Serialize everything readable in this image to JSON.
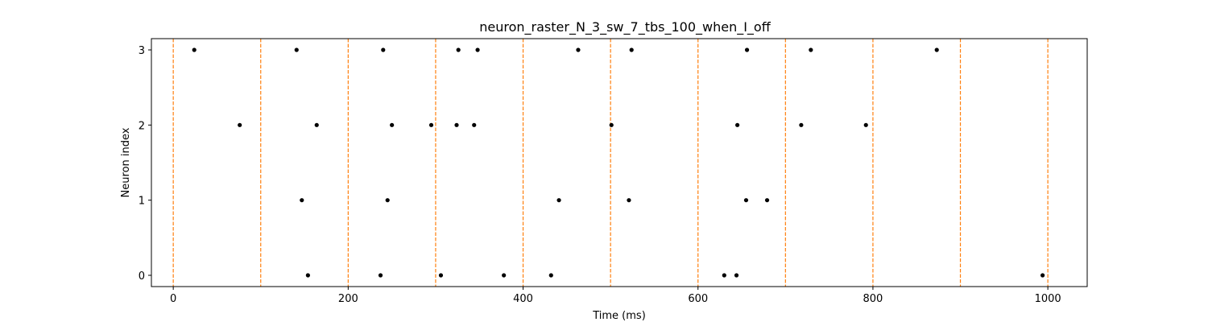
{
  "chart_data": {
    "type": "scatter",
    "title": "neuron_raster_N_3_sw_7_tbs_100_when_I_off",
    "xlabel": "Time (ms)",
    "ylabel": "Neuron index",
    "xlim": [
      -25,
      1045
    ],
    "ylim": [
      -0.15,
      3.15
    ],
    "xticks": [
      0,
      200,
      400,
      600,
      800,
      1000
    ],
    "yticks": [
      0,
      1,
      2,
      3
    ],
    "grid": false,
    "point_color": "#000000",
    "vlines": {
      "x": [
        0,
        100,
        200,
        300,
        400,
        500,
        600,
        700,
        800,
        900,
        1000
      ],
      "color": "#ff7f0e",
      "style": "dashed"
    },
    "spikes": [
      {
        "neuron": 3,
        "times": [
          24,
          141,
          240,
          326,
          348,
          463,
          524,
          656,
          729,
          873
        ]
      },
      {
        "neuron": 2,
        "times": [
          76,
          164,
          250,
          295,
          324,
          344,
          501,
          645,
          718,
          792
        ]
      },
      {
        "neuron": 1,
        "times": [
          147,
          245,
          441,
          521,
          655,
          679
        ]
      },
      {
        "neuron": 0,
        "times": [
          154,
          237,
          306,
          378,
          432,
          630,
          644,
          994
        ]
      }
    ]
  }
}
